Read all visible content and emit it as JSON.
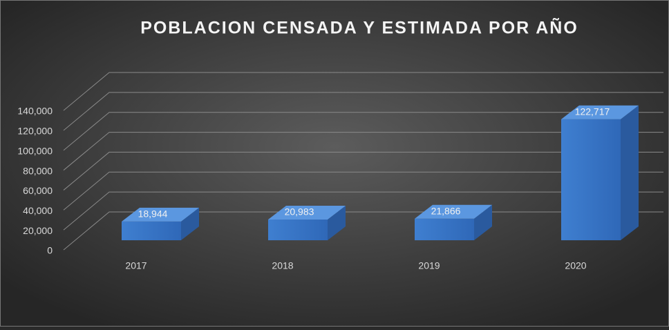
{
  "chart_data": {
    "type": "bar3d",
    "title": "POBLACION  CENSADA Y ESTIMADA POR AÑO",
    "categories": [
      "2017",
      "2018",
      "2019",
      "2020"
    ],
    "values": [
      18944,
      20983,
      21866,
      122717
    ],
    "value_labels": [
      "18,944",
      "20,983",
      "21,866",
      "122,717"
    ],
    "color": "#3a78c8",
    "ylim": [
      0,
      140000
    ],
    "yticks": [
      0,
      {
        "value": 20000,
        "label": "20,000"
      },
      {
        "value": 40000,
        "label": "40,000"
      },
      {
        "value": 60000,
        "label": "60,000"
      },
      {
        "value": 80000,
        "label": "80,000"
      },
      {
        "value": 100000,
        "label": "100,000"
      },
      {
        "value": 120000,
        "label": "120,000"
      },
      {
        "value": 140000,
        "label": "140,000"
      }
    ],
    "grid": true
  }
}
